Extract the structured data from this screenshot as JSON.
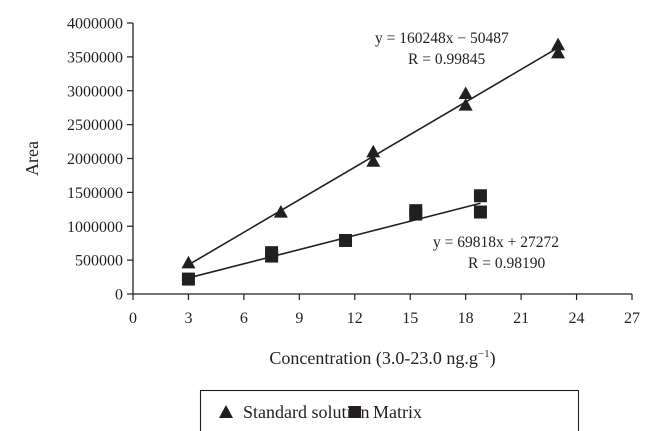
{
  "chart_data": {
    "type": "scatter",
    "xlabel": "Concentration (3.0-23.0 ng.g",
    "xlabel_superscript": "−1",
    "xlabel_suffix": ")",
    "ylabel": "Area",
    "xlim": [
      0,
      27
    ],
    "ylim": [
      0,
      4000000
    ],
    "x_ticks": [
      0,
      3,
      6,
      9,
      12,
      15,
      18,
      21,
      24,
      27
    ],
    "y_ticks": [
      0,
      500000,
      1000000,
      1500000,
      2000000,
      2500000,
      3000000,
      3500000,
      4000000
    ],
    "grid": false,
    "legend_position": "bottom",
    "series": [
      {
        "name": "Standard solution",
        "marker": "triangle",
        "color": "#231f20",
        "points": [
          [
            3,
            460000
          ],
          [
            8,
            1210000
          ],
          [
            13,
            2100000
          ],
          [
            13,
            1960000
          ],
          [
            18,
            2960000
          ],
          [
            18,
            2790000
          ],
          [
            23,
            3680000
          ],
          [
            23,
            3560000
          ]
        ],
        "fit": {
          "slope": 160248,
          "intercept": -50487,
          "x_range": [
            3,
            23
          ]
        },
        "equation": "y = 160248x − 50487",
        "r_text": "R = 0.99845"
      },
      {
        "name": "Matrix",
        "marker": "square",
        "color": "#231f20",
        "points": [
          [
            3,
            220000
          ],
          [
            7.5,
            610000
          ],
          [
            7.5,
            560000
          ],
          [
            11.5,
            790000
          ],
          [
            15.3,
            1230000
          ],
          [
            15.3,
            1180000
          ],
          [
            18.8,
            1450000
          ],
          [
            18.8,
            1210000
          ]
        ],
        "fit": {
          "slope": 69818,
          "intercept": 27272,
          "x_range": [
            3,
            18.8
          ]
        },
        "equation": "y = 69818x + 27272",
        "r_text": "R = 0.98190"
      }
    ]
  }
}
